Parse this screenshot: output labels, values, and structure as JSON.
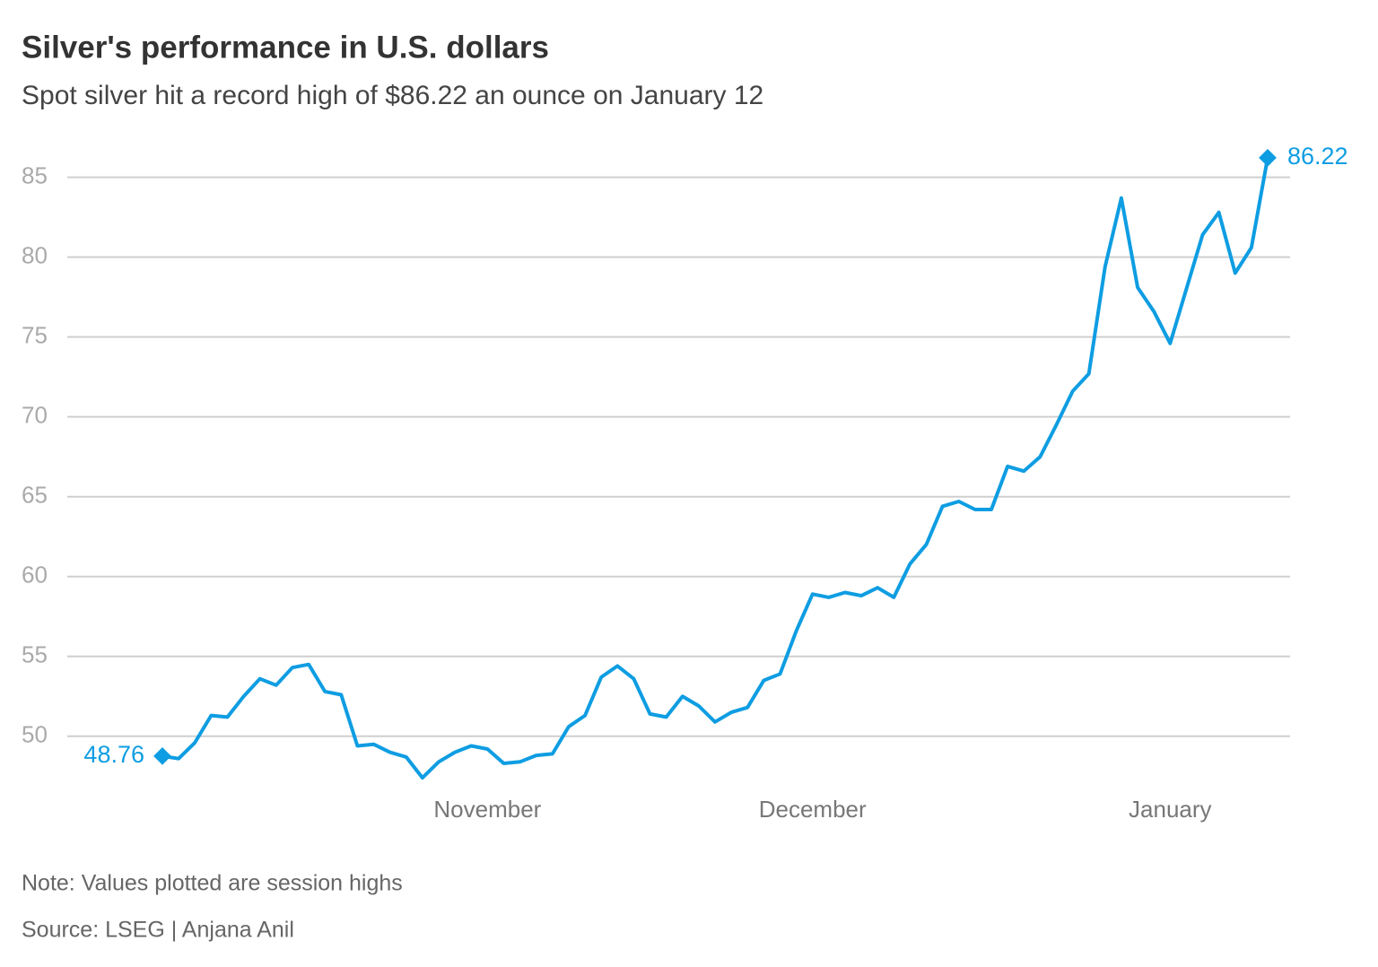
{
  "chart_data": {
    "type": "line",
    "title": "Silver's performance in U.S. dollars",
    "subtitle": "Spot silver hit a record high of $86.22 an ounce on January 12",
    "note": "Note: Values plotted are session highs",
    "source": "Source: LSEG | Anjana Anil",
    "color": "#0e9de2",
    "grid": true,
    "ylim": [
      46,
      87
    ],
    "yticks": [
      50,
      55,
      60,
      65,
      70,
      75,
      80,
      85
    ],
    "categories": [
      null,
      null,
      null,
      null,
      null,
      null,
      null,
      null,
      null,
      null,
      null,
      null,
      null,
      null,
      null,
      null,
      null,
      null,
      null,
      null,
      "November",
      null,
      null,
      null,
      null,
      null,
      null,
      null,
      null,
      null,
      null,
      null,
      null,
      null,
      null,
      null,
      null,
      null,
      null,
      null,
      "December",
      null,
      null,
      null,
      null,
      null,
      null,
      null,
      null,
      null,
      null,
      null,
      null,
      null,
      null,
      null,
      null,
      null,
      null,
      null,
      null,
      null,
      "January",
      null,
      null,
      null,
      null,
      null,
      null
    ],
    "values": [
      48.76,
      48.6,
      49.6,
      51.3,
      51.2,
      52.5,
      53.6,
      53.2,
      54.3,
      54.5,
      52.8,
      52.6,
      49.4,
      49.5,
      49.0,
      48.7,
      47.4,
      48.4,
      49.0,
      49.4,
      49.2,
      48.3,
      48.4,
      48.8,
      48.9,
      50.6,
      51.3,
      53.7,
      54.4,
      53.6,
      51.4,
      51.2,
      52.5,
      51.9,
      50.9,
      51.5,
      51.8,
      53.5,
      53.9,
      56.6,
      58.9,
      58.7,
      59.0,
      58.8,
      59.3,
      58.7,
      60.8,
      62.0,
      64.4,
      64.7,
      64.2,
      64.2,
      66.9,
      66.6,
      67.5,
      69.5,
      71.6,
      72.7,
      79.4,
      83.7,
      78.1,
      76.6,
      74.6,
      78.0,
      81.4,
      82.8,
      79.0,
      80.6,
      86.22
    ]
  }
}
